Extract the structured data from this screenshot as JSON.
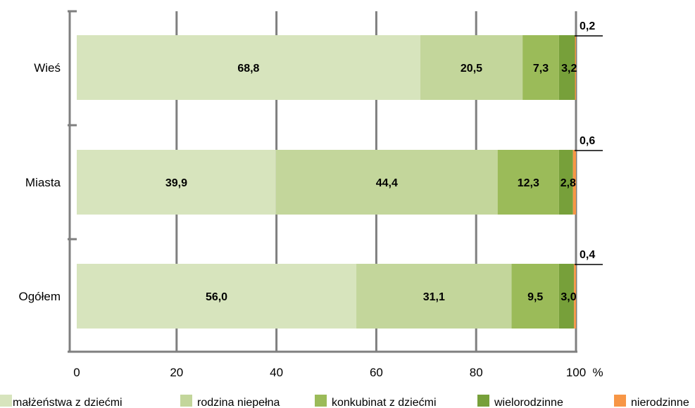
{
  "chart_data": {
    "type": "bar",
    "orientation": "horizontal",
    "stacked": "percent",
    "categories": [
      "Wieś",
      "Miasta",
      "Ogółem"
    ],
    "series": [
      {
        "name": "małżeństwa z dziećmi",
        "color": "#d7e4bd",
        "values": [
          68.8,
          39.9,
          56.0
        ],
        "labels": [
          "68,8",
          "39,9",
          "56,0"
        ]
      },
      {
        "name": "rodzina niepełna",
        "color": "#c3d69b",
        "values": [
          20.5,
          44.4,
          31.1
        ],
        "labels": [
          "20,5",
          "44,4",
          "31,1"
        ]
      },
      {
        "name": "konkubinat z dziećmi",
        "color": "#9bbb59",
        "values": [
          7.3,
          12.3,
          9.5
        ],
        "labels": [
          "7,3",
          "12,3",
          "9,5"
        ]
      },
      {
        "name": "wielorodzinne",
        "color": "#77a03a",
        "values": [
          3.2,
          2.8,
          3.0
        ],
        "labels": [
          "3,2",
          "2,8",
          "3,0"
        ]
      },
      {
        "name": "nierodzinne",
        "color": "#f79646",
        "values": [
          0.2,
          0.6,
          0.4
        ],
        "labels": [
          "0,2",
          "0,6",
          "0,4"
        ]
      }
    ],
    "xlim": [
      0,
      100
    ],
    "xticks": [
      "0",
      "20",
      "40",
      "60",
      "80",
      "100"
    ],
    "xunit": "%",
    "grid": true,
    "legend": "bottom"
  }
}
